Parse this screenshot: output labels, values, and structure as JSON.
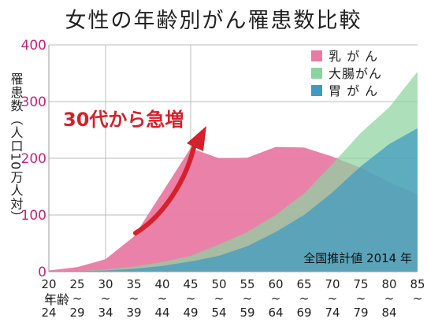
{
  "chart_data": {
    "type": "area",
    "title": "女性の年齢別がん罹患数比較",
    "ylabel": "罹患数（人口10万人対）",
    "xlabel": "年齢",
    "ylim": [
      0,
      400
    ],
    "yticks": [
      0,
      100,
      200,
      300,
      400
    ],
    "grid": true,
    "legend_position": "top-right",
    "x": [
      20,
      25,
      30,
      35,
      40,
      45,
      50,
      55,
      60,
      65,
      70,
      75,
      80,
      85
    ],
    "categories": [
      [
        "20",
        "~",
        "24"
      ],
      [
        "25",
        "~",
        "29"
      ],
      [
        "30",
        "~",
        "34"
      ],
      [
        "35",
        "~",
        "39"
      ],
      [
        "40",
        "~",
        "44"
      ],
      [
        "45",
        "~",
        "49"
      ],
      [
        "50",
        "~",
        "54"
      ],
      [
        "55",
        "~",
        "59"
      ],
      [
        "60",
        "~",
        "64"
      ],
      [
        "65",
        "~",
        "69"
      ],
      [
        "70",
        "~",
        "74"
      ],
      [
        "75",
        "~",
        "79"
      ],
      [
        "80",
        "~",
        "84"
      ],
      [
        "85",
        "~",
        ""
      ]
    ],
    "series": [
      {
        "name": "乳 が ん",
        "color": "#e97aa4",
        "values": [
          2,
          8,
          22,
          62,
          140,
          218,
          200,
          201,
          220,
          219,
          203,
          183,
          158,
          136
        ]
      },
      {
        "name": "大腸がん",
        "color": "#8dd3a0",
        "values": [
          0,
          1,
          4,
          9,
          17,
          28,
          48,
          70,
          100,
          138,
          190,
          245,
          290,
          353
        ]
      },
      {
        "name": "胃 が ん",
        "color": "#3f9ac0",
        "values": [
          0,
          1,
          2,
          5,
          10,
          18,
          28,
          45,
          70,
          100,
          140,
          186,
          225,
          253
        ]
      }
    ],
    "annotation": "30代から急増",
    "note": "全国推計値 2014 年"
  }
}
